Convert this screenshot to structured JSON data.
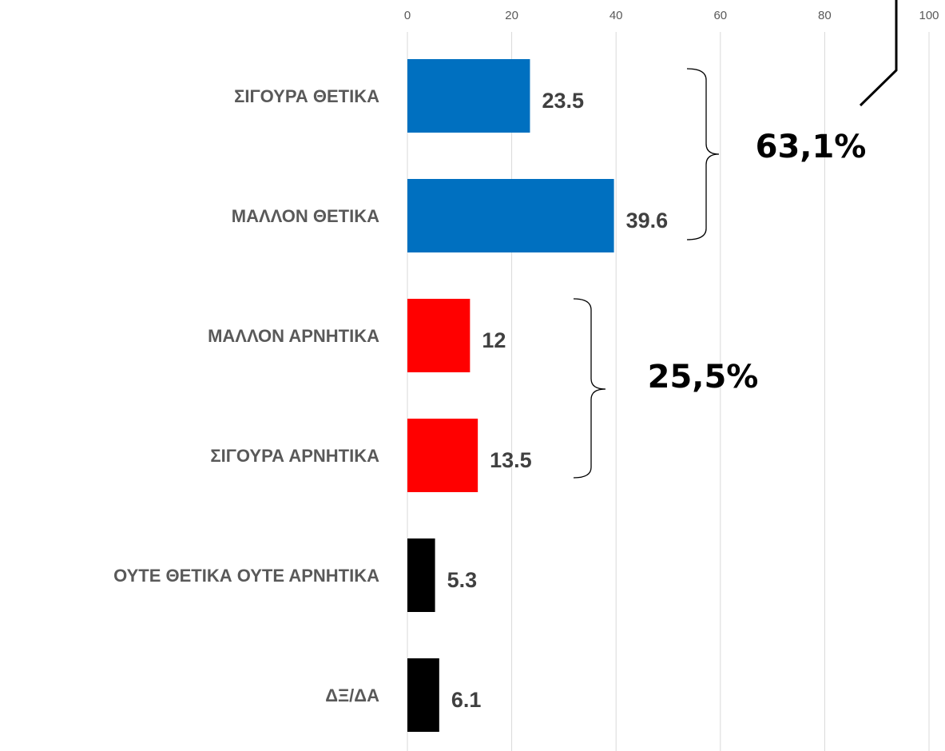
{
  "chart_data": {
    "type": "barh",
    "categories": [
      "ΣΙΓΟΥΡΑ ΘΕΤΙΚΑ",
      "ΜΑΛΛΟΝ ΘΕΤΙΚΑ",
      "ΜΑΛΛΟΝ ΑΡΝΗΤΙΚΑ",
      "ΣΙΓΟΥΡΑ ΑΡΝΗΤΙΚΑ",
      "ΟΥΤΕ ΘΕΤΙΚΑ ΟΥΤΕ ΑΡΝΗΤΙΚΑ",
      "ΔΞ/ΔΑ"
    ],
    "values": [
      23.5,
      39.6,
      12,
      13.5,
      5.3,
      6.1
    ],
    "colors": [
      "#0070c0",
      "#0070c0",
      "#ff0000",
      "#ff0000",
      "#000000",
      "#000000"
    ],
    "xlim": [
      0,
      100
    ],
    "xticks": [
      0,
      20,
      40,
      60,
      80,
      100
    ],
    "grid": true,
    "annotations": [
      "63,1%",
      "25,5%"
    ]
  }
}
